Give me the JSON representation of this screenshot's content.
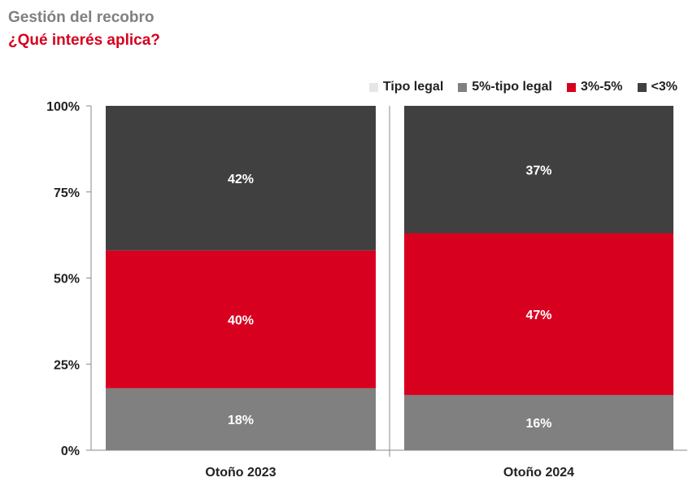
{
  "header": {
    "title": "Gestión del recobro",
    "subtitle": "¿Qué interés aplica?"
  },
  "chart_data": {
    "type": "bar",
    "stacked": true,
    "categories": [
      "Otoño 2023",
      "Otoño 2024"
    ],
    "series": [
      {
        "name": "Tipo legal",
        "values": [
          0,
          0
        ],
        "color": "#e6e6e6"
      },
      {
        "name": "5%-tipo legal",
        "values": [
          18,
          16
        ],
        "color": "#808080"
      },
      {
        "name": "3%-5%",
        "values": [
          40,
          47
        ],
        "color": "#d7001f"
      },
      {
        "name": "<3%",
        "values": [
          42,
          37
        ],
        "color": "#404040"
      }
    ],
    "data_labels": [
      [
        "",
        "18%",
        "40%",
        "42%"
      ],
      [
        "",
        "16%",
        "47%",
        "37%"
      ]
    ],
    "y_ticks": [
      "0%",
      "25%",
      "50%",
      "75%",
      "100%"
    ],
    "ylim": [
      0,
      100
    ],
    "legend_position": "top-right",
    "grid": false
  }
}
